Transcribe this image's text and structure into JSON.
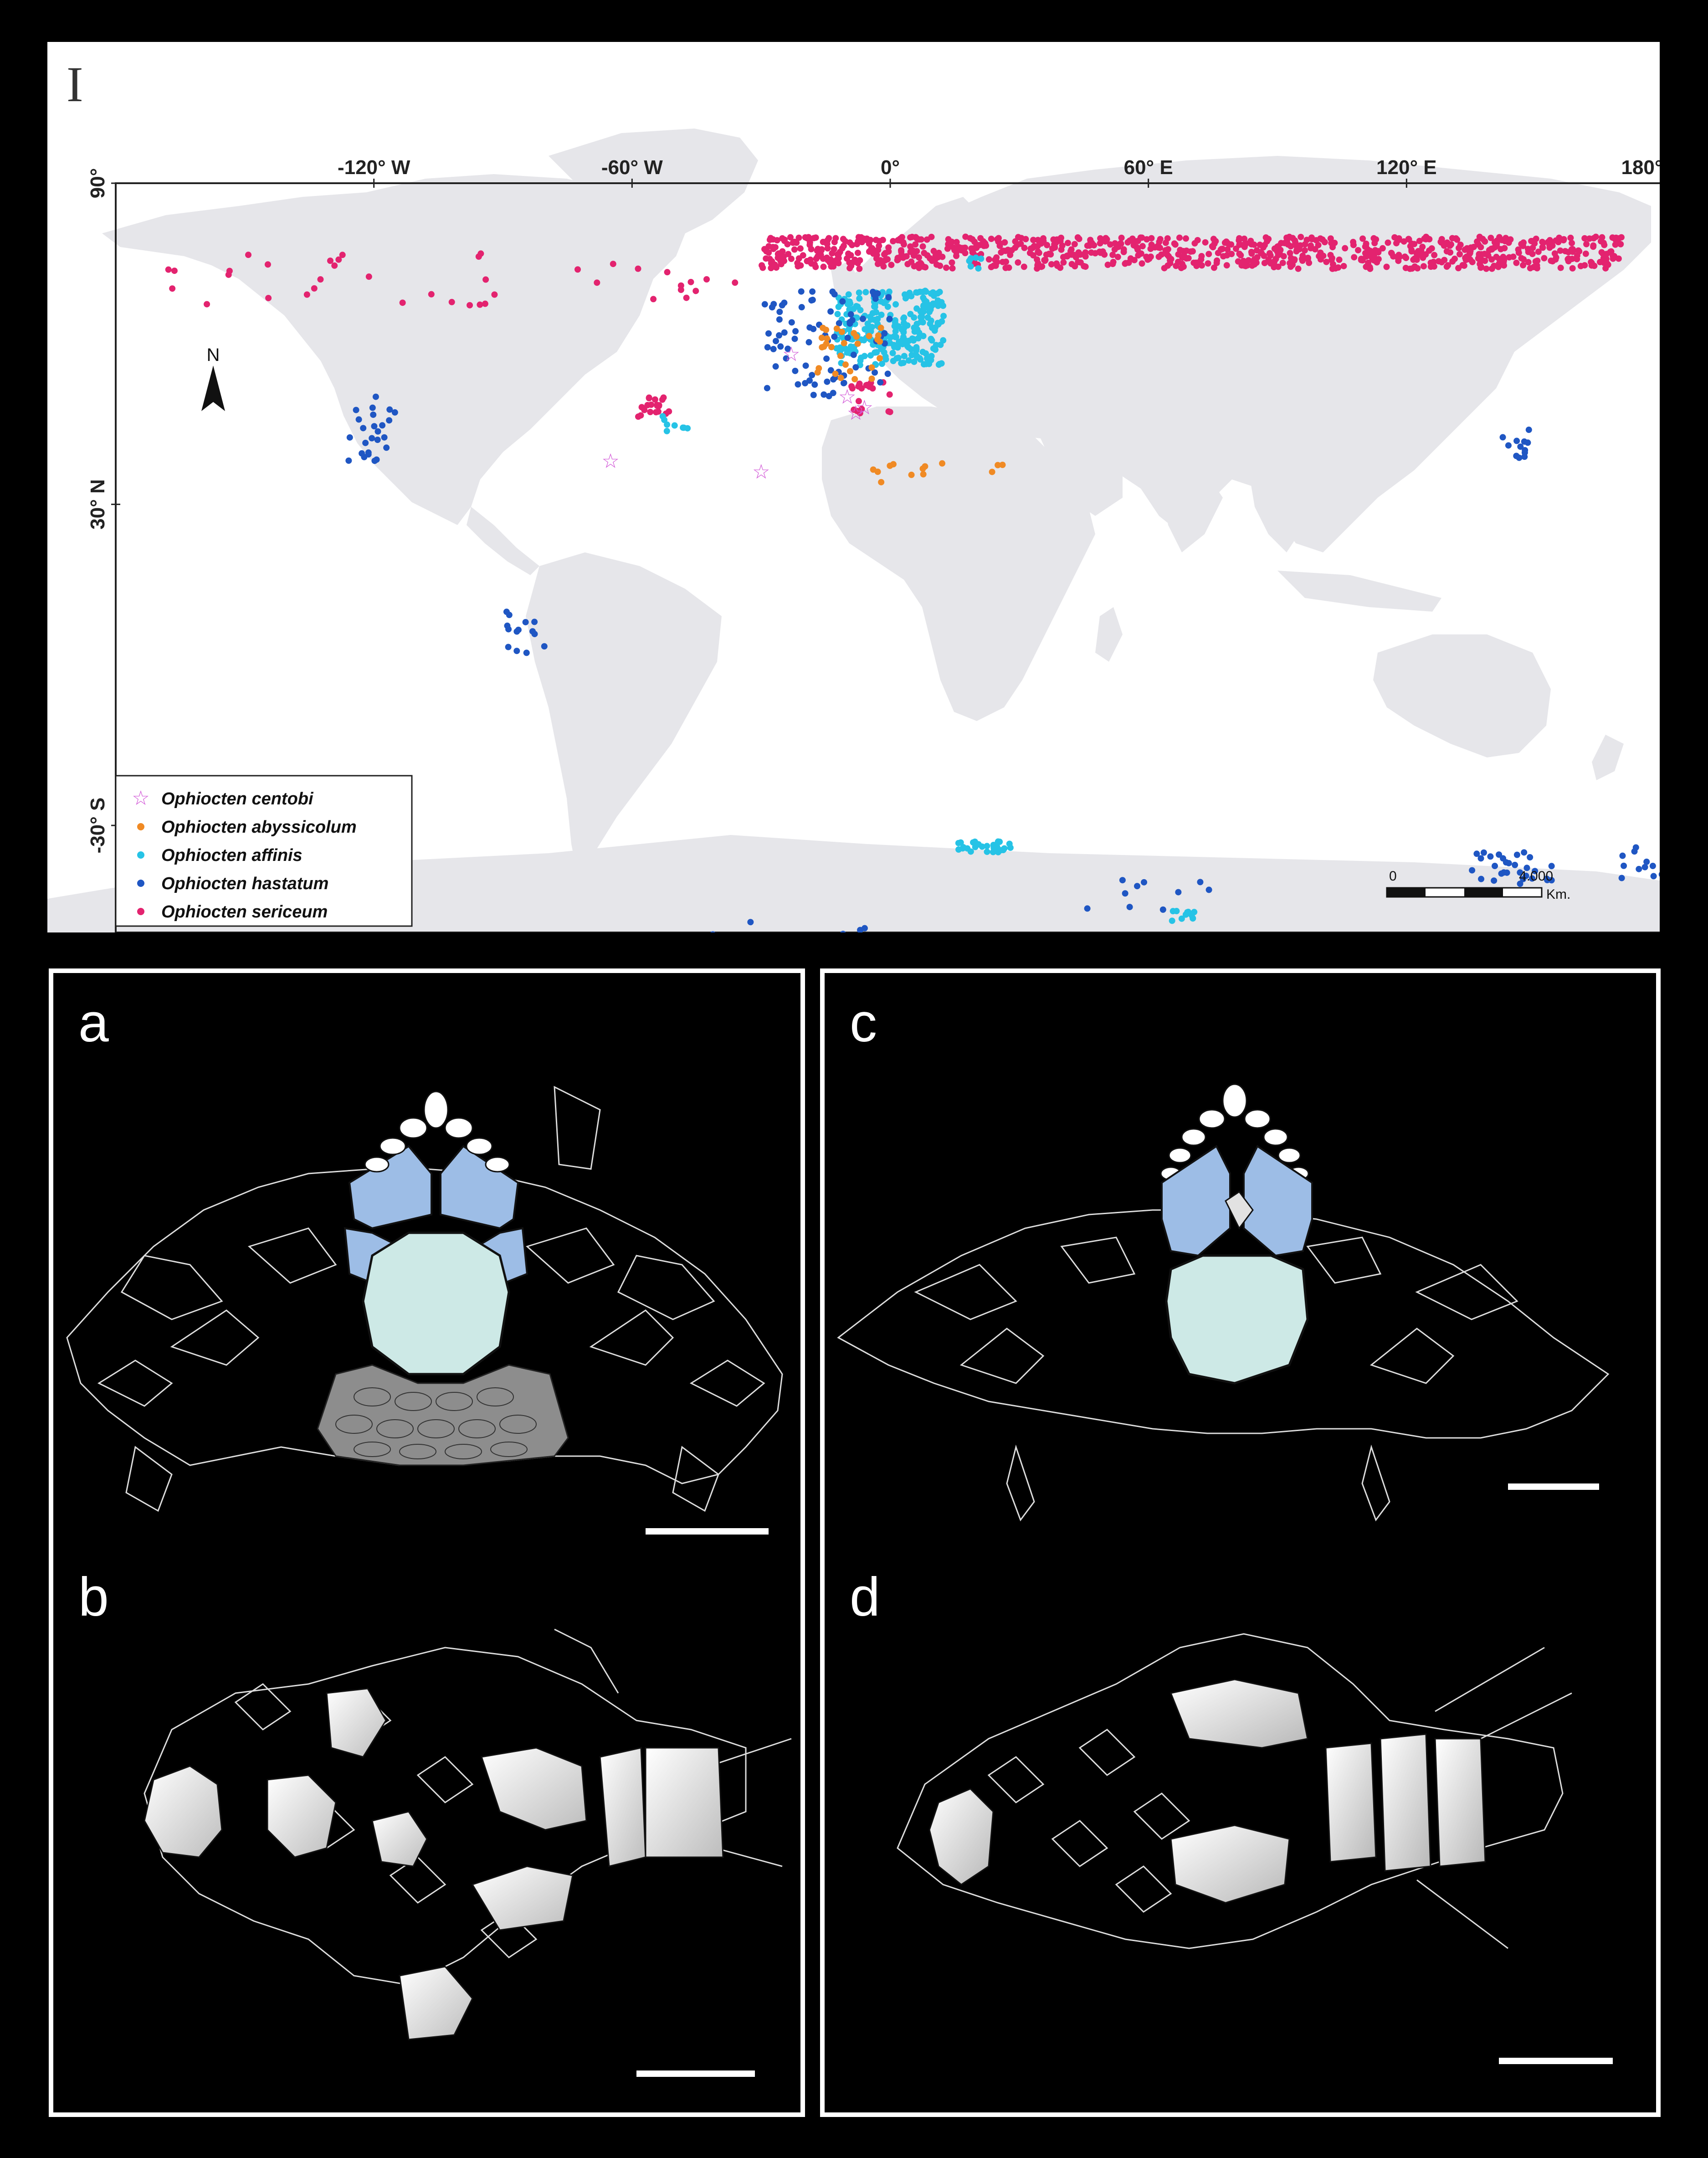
{
  "map": {
    "panel_label": "I",
    "lon_ticks": [
      {
        "label": "-120° W",
        "lon": -120
      },
      {
        "label": "-60° W",
        "lon": -60
      },
      {
        "label": "0°",
        "lon": 0
      },
      {
        "label": "60° E",
        "lon": 60
      },
      {
        "label": "120° E",
        "lon": 120
      },
      {
        "label": "180°",
        "lon": 180
      }
    ],
    "lat_ticks": [
      {
        "label": "90°",
        "lat": 90
      },
      {
        "label": "30° N",
        "lat": 30
      },
      {
        "label": "-30° S",
        "lat": -30
      }
    ],
    "north_arrow_label": "N",
    "scale_bar": {
      "start_label": "0",
      "end_label": "4.000",
      "unit_label": "Km."
    },
    "legend": [
      {
        "label": "Ophiocten centobi",
        "color": "#d35bd8",
        "symbol": "star"
      },
      {
        "label": "Ophiocten abyssicolum",
        "color": "#f08a24",
        "symbol": "dot"
      },
      {
        "label": "Ophiocten affinis",
        "color": "#26c3e6",
        "symbol": "dot"
      },
      {
        "label": "Ophiocten hastatum",
        "color": "#1f56c3",
        "symbol": "dot"
      },
      {
        "label": "Ophiocten sericeum",
        "color": "#e3236f",
        "symbol": "dot"
      }
    ],
    "colors": {
      "land": "#e6e6ea",
      "ocean": "#ffffff"
    }
  },
  "panels": {
    "a": {
      "label": "a"
    },
    "b": {
      "label": "b"
    },
    "c": {
      "label": "c"
    },
    "d": {
      "label": "d"
    }
  },
  "drawing_colors": {
    "blue_plate": "#9dbde6",
    "mint_plate": "#cde9e6",
    "gray_scales": "#8d8d8d",
    "outline": "#dcdcdc"
  }
}
